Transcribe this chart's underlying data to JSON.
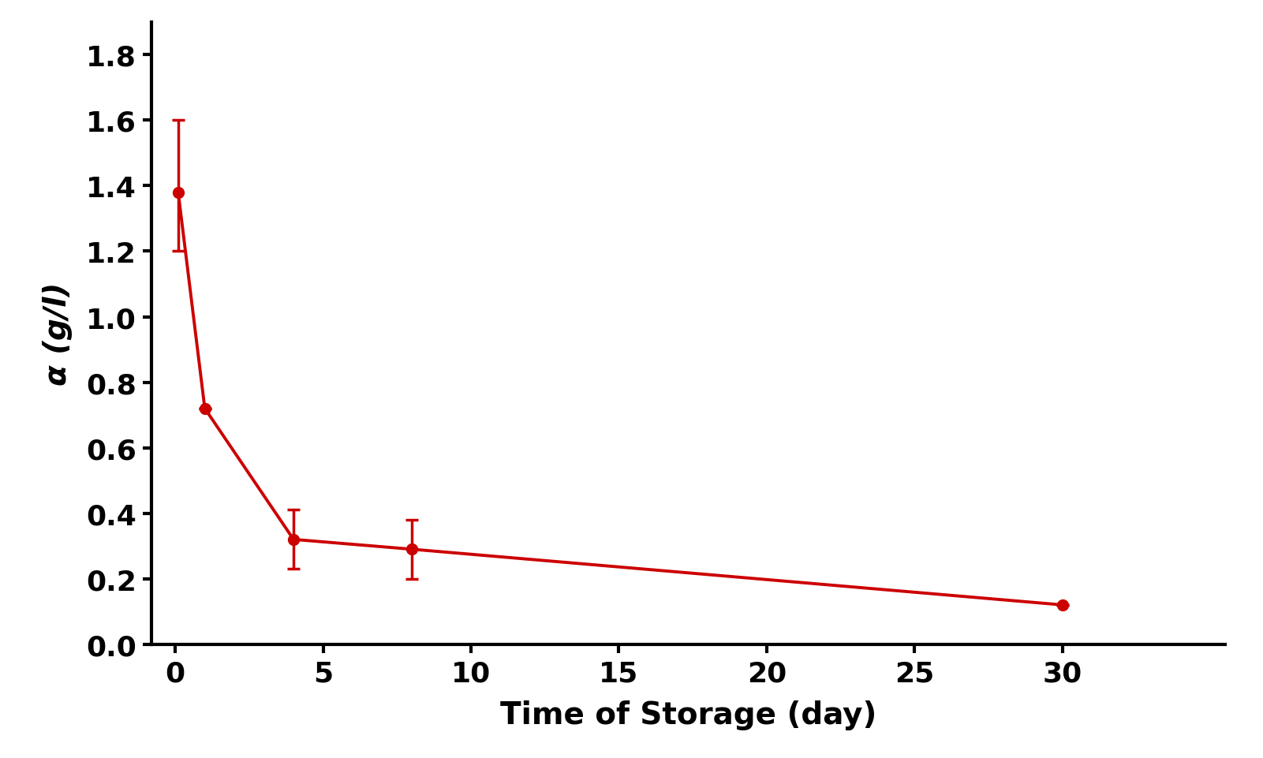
{
  "x": [
    0.1,
    1,
    4,
    8,
    30
  ],
  "y": [
    1.38,
    0.72,
    0.32,
    0.29,
    0.12
  ],
  "yerr_upper": [
    0.22,
    0.0,
    0.09,
    0.09,
    0.0
  ],
  "yerr_lower": [
    0.18,
    0.0,
    0.09,
    0.09,
    0.0
  ],
  "line_color": "#CC0000",
  "marker": "o",
  "markersize": 10,
  "linewidth": 2.8,
  "capsize": 6,
  "xlabel": "Time of Storage (day)",
  "ylabel": "α (g/l)",
  "xlim": [
    -0.8,
    35.5
  ],
  "ylim": [
    0.0,
    1.9
  ],
  "xticks": [
    0,
    5,
    10,
    15,
    20,
    25,
    30
  ],
  "yticks": [
    0.0,
    0.2,
    0.4,
    0.6,
    0.8,
    1.0,
    1.2,
    1.4,
    1.6,
    1.8
  ],
  "xlabel_fontsize": 28,
  "ylabel_fontsize": 28,
  "tick_fontsize": 26,
  "axis_label_weight": "bold",
  "background_color": "#ffffff",
  "elinewidth": 2.5,
  "capthick": 2.5,
  "spine_linewidth": 3.0
}
